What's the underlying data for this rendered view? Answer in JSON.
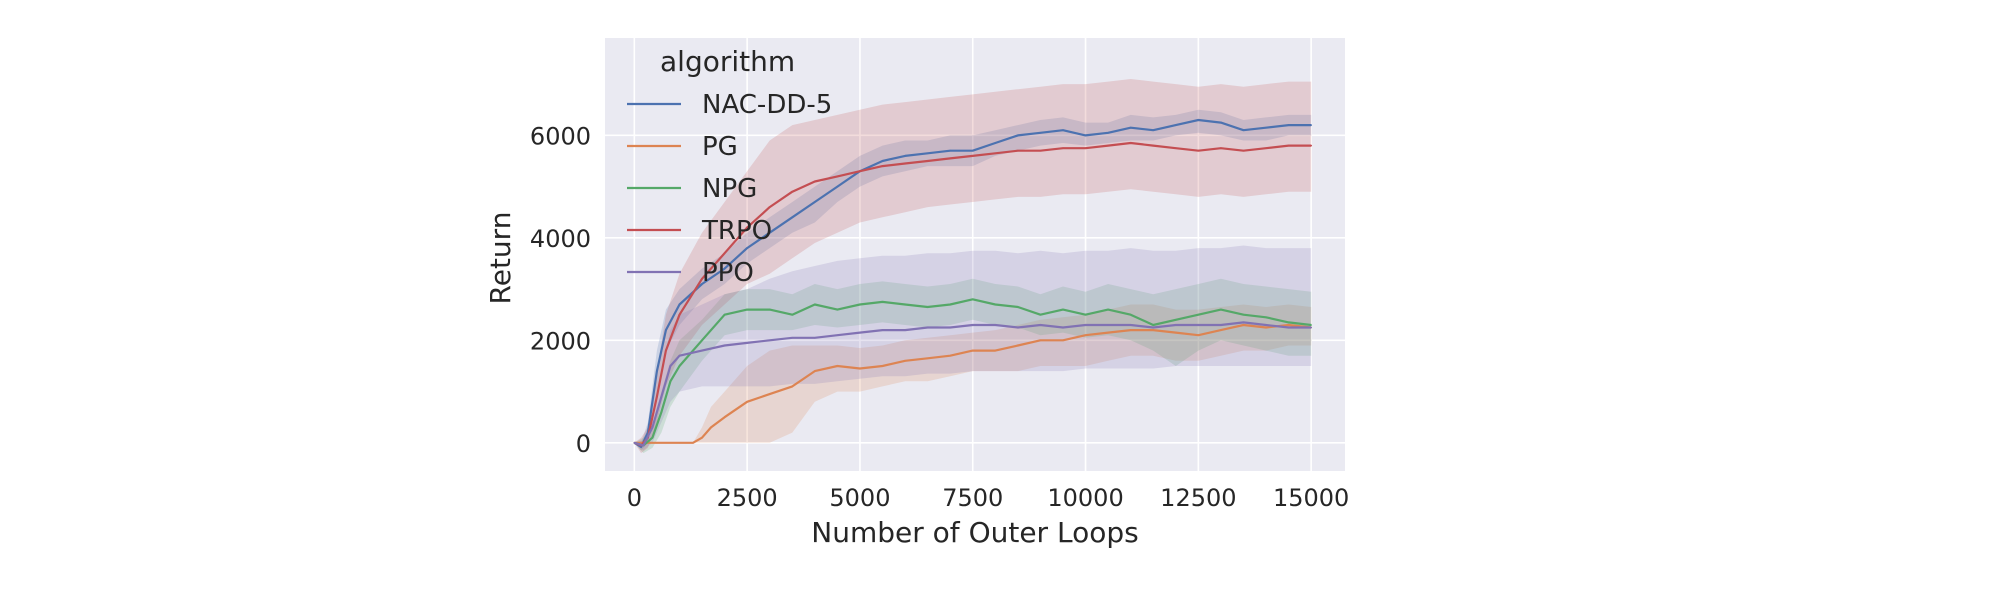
{
  "chart_data": {
    "type": "line",
    "xlabel": "Number of Outer Loops",
    "ylabel": "Return",
    "xlim": [
      -650,
      15750
    ],
    "ylim": [
      -550,
      7900
    ],
    "xticks": [
      0,
      2500,
      5000,
      7500,
      10000,
      12500,
      15000
    ],
    "yticks": [
      0,
      2000,
      4000,
      6000
    ],
    "xtick_labels": [
      "0",
      "2500",
      "5000",
      "7500",
      "10000",
      "12500",
      "15000"
    ],
    "ytick_labels": [
      "0",
      "2000",
      "4000",
      "6000"
    ],
    "grid": true,
    "background": "#eaeaf2",
    "legend": {
      "title": "algorithm",
      "placement": "top-left"
    },
    "series": [
      {
        "name": "NAC-DD-5",
        "color": "#4c72b0",
        "x": [
          0,
          150,
          300,
          500,
          700,
          1000,
          1500,
          2000,
          2500,
          3000,
          3500,
          4000,
          4500,
          5000,
          5500,
          6000,
          6500,
          7000,
          7500,
          8000,
          8500,
          9000,
          9500,
          10000,
          10500,
          11000,
          11500,
          12000,
          12500,
          13000,
          13500,
          14000,
          14500,
          15000
        ],
        "values": [
          0,
          -80,
          200,
          1400,
          2200,
          2700,
          3100,
          3400,
          3800,
          4100,
          4400,
          4700,
          5000,
          5300,
          5500,
          5600,
          5650,
          5700,
          5700,
          5850,
          6000,
          6050,
          6100,
          6000,
          6050,
          6150,
          6100,
          6200,
          6300,
          6250,
          6100,
          6150,
          6200,
          6200
        ],
        "lower": [
          0,
          -150,
          0,
          1000,
          1800,
          2300,
          2800,
          3100,
          3500,
          3800,
          4100,
          4300,
          4700,
          5000,
          5200,
          5300,
          5400,
          5400,
          5400,
          5600,
          5700,
          5800,
          5850,
          5800,
          5850,
          5900,
          5900,
          6000,
          6050,
          6000,
          5900,
          5900,
          6000,
          6000
        ],
        "upper": [
          0,
          0,
          400,
          1800,
          2600,
          3000,
          3400,
          3700,
          4100,
          4400,
          4700,
          5000,
          5300,
          5600,
          5800,
          5900,
          5900,
          6000,
          6000,
          6100,
          6200,
          6300,
          6350,
          6250,
          6250,
          6400,
          6350,
          6400,
          6500,
          6450,
          6300,
          6350,
          6400,
          6400
        ]
      },
      {
        "name": "PG",
        "color": "#dd8452",
        "x": [
          0,
          500,
          1000,
          1300,
          1500,
          1700,
          2000,
          2500,
          3000,
          3500,
          4000,
          4500,
          5000,
          5500,
          6000,
          6500,
          7000,
          7500,
          8000,
          8500,
          9000,
          9500,
          10000,
          10500,
          11000,
          11500,
          12000,
          12500,
          13000,
          13500,
          14000,
          14500,
          15000
        ],
        "values": [
          0,
          0,
          0,
          0,
          100,
          300,
          500,
          800,
          950,
          1100,
          1400,
          1500,
          1450,
          1500,
          1600,
          1650,
          1700,
          1800,
          1800,
          1900,
          2000,
          2000,
          2100,
          2150,
          2200,
          2200,
          2150,
          2100,
          2200,
          2300,
          2250,
          2300,
          2250
        ],
        "lower": [
          0,
          0,
          0,
          0,
          0,
          0,
          0,
          0,
          0,
          200,
          800,
          1000,
          1000,
          1100,
          1200,
          1200,
          1300,
          1400,
          1400,
          1400,
          1500,
          1500,
          1500,
          1600,
          1700,
          1700,
          1600,
          1600,
          1700,
          1800,
          1800,
          1900,
          1900
        ],
        "upper": [
          0,
          0,
          0,
          0,
          300,
          700,
          1000,
          1500,
          1800,
          1900,
          1900,
          1900,
          1850,
          1900,
          2000,
          2050,
          2100,
          2150,
          2200,
          2300,
          2400,
          2450,
          2500,
          2600,
          2700,
          2700,
          2600,
          2600,
          2650,
          2700,
          2650,
          2700,
          2650
        ]
      },
      {
        "name": "NPG",
        "color": "#55a868",
        "x": [
          0,
          200,
          400,
          600,
          800,
          1000,
          1500,
          2000,
          2500,
          3000,
          3500,
          4000,
          4500,
          5000,
          5500,
          6000,
          6500,
          7000,
          7500,
          8000,
          8500,
          9000,
          9500,
          10000,
          10500,
          11000,
          11500,
          12000,
          12500,
          13000,
          13500,
          14000,
          14500,
          15000
        ],
        "values": [
          0,
          -50,
          100,
          600,
          1200,
          1500,
          2000,
          2500,
          2600,
          2600,
          2500,
          2700,
          2600,
          2700,
          2750,
          2700,
          2650,
          2700,
          2800,
          2700,
          2650,
          2500,
          2600,
          2500,
          2600,
          2500,
          2300,
          2400,
          2500,
          2600,
          2500,
          2450,
          2350,
          2300
        ],
        "lower": [
          0,
          -200,
          -100,
          200,
          700,
          1000,
          1600,
          2100,
          2200,
          2200,
          2200,
          2300,
          2250,
          2300,
          2350,
          2300,
          2250,
          2300,
          2400,
          2300,
          2250,
          2100,
          2150,
          2050,
          2100,
          2000,
          1800,
          1500,
          1800,
          2000,
          1900,
          1800,
          1700,
          1700
        ],
        "upper": [
          0,
          100,
          300,
          1000,
          1600,
          2000,
          2400,
          2900,
          3000,
          3000,
          2900,
          3100,
          3000,
          3100,
          3150,
          3100,
          3050,
          3100,
          3200,
          3100,
          3050,
          2900,
          3050,
          2950,
          3100,
          3000,
          2900,
          3000,
          3100,
          3200,
          3100,
          3050,
          3000,
          2950
        ]
      },
      {
        "name": "TRPO",
        "color": "#c44e52",
        "x": [
          0,
          150,
          300,
          500,
          700,
          1000,
          1500,
          2000,
          2500,
          3000,
          3500,
          4000,
          4500,
          5000,
          5500,
          6000,
          6500,
          7000,
          7500,
          8000,
          8500,
          9000,
          9500,
          10000,
          10500,
          11000,
          11500,
          12000,
          12500,
          13000,
          13500,
          14000,
          14500,
          15000
        ],
        "values": [
          0,
          -50,
          100,
          900,
          1800,
          2500,
          3200,
          3700,
          4200,
          4600,
          4900,
          5100,
          5200,
          5300,
          5400,
          5450,
          5500,
          5550,
          5600,
          5650,
          5700,
          5700,
          5750,
          5750,
          5800,
          5850,
          5800,
          5750,
          5700,
          5750,
          5700,
          5750,
          5800,
          5800
        ],
        "lower": [
          0,
          -200,
          -100,
          400,
          1100,
          1700,
          2300,
          2700,
          3100,
          3300,
          3600,
          3900,
          4100,
          4300,
          4400,
          4500,
          4600,
          4650,
          4700,
          4750,
          4800,
          4800,
          4850,
          4850,
          4900,
          4950,
          4900,
          4850,
          4800,
          4850,
          4800,
          4850,
          4900,
          4900
        ],
        "upper": [
          0,
          100,
          300,
          1400,
          2500,
          3300,
          4100,
          4700,
          5300,
          5900,
          6200,
          6300,
          6400,
          6500,
          6600,
          6650,
          6700,
          6750,
          6800,
          6850,
          6900,
          6950,
          7000,
          7000,
          7050,
          7100,
          7050,
          7000,
          6950,
          7000,
          6950,
          7000,
          7050,
          7050
        ]
      },
      {
        "name": "PPO",
        "color": "#8172b3",
        "x": [
          0,
          200,
          400,
          600,
          800,
          1000,
          1500,
          2000,
          2500,
          3000,
          3500,
          4000,
          4500,
          5000,
          5500,
          6000,
          6500,
          7000,
          7500,
          8000,
          8500,
          9000,
          9500,
          10000,
          10500,
          11000,
          11500,
          12000,
          12500,
          13000,
          13500,
          14000,
          14500,
          15000
        ],
        "values": [
          0,
          -50,
          300,
          900,
          1500,
          1700,
          1800,
          1900,
          1950,
          2000,
          2050,
          2050,
          2100,
          2150,
          2200,
          2200,
          2250,
          2250,
          2300,
          2300,
          2250,
          2300,
          2250,
          2300,
          2300,
          2300,
          2250,
          2300,
          2300,
          2300,
          2350,
          2300,
          2250,
          2250
        ],
        "lower": [
          0,
          -150,
          0,
          400,
          800,
          1000,
          1100,
          1100,
          1100,
          1100,
          1150,
          1150,
          1200,
          1250,
          1300,
          1300,
          1350,
          1350,
          1400,
          1400,
          1400,
          1400,
          1400,
          1450,
          1450,
          1450,
          1450,
          1500,
          1500,
          1500,
          1500,
          1500,
          1500,
          1500
        ],
        "upper": [
          0,
          50,
          600,
          1400,
          2200,
          2500,
          2700,
          2900,
          3000,
          3200,
          3350,
          3450,
          3550,
          3600,
          3650,
          3650,
          3700,
          3700,
          3750,
          3750,
          3700,
          3750,
          3700,
          3750,
          3750,
          3800,
          3750,
          3750,
          3800,
          3800,
          3850,
          3800,
          3800,
          3800
        ]
      }
    ]
  }
}
